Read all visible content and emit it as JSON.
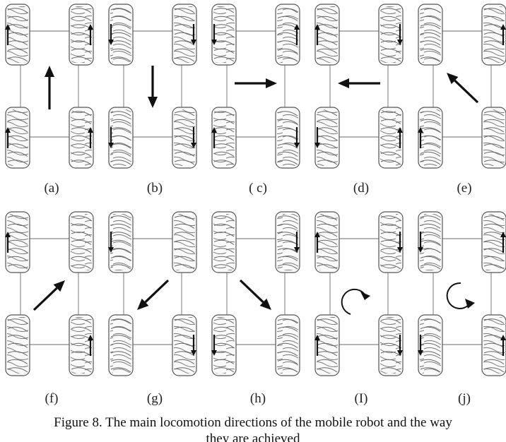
{
  "panels": [
    {
      "label": "(a)",
      "motion": "forward",
      "wheel_arrows": [
        "up",
        "up",
        "up",
        "up"
      ]
    },
    {
      "label": "(b)",
      "motion": "backward",
      "wheel_arrows": [
        "down",
        "down",
        "down",
        "down"
      ]
    },
    {
      "label": "( c)",
      "motion": "right",
      "wheel_arrows": [
        "down",
        "up",
        "up",
        "down"
      ]
    },
    {
      "label": "(d)",
      "motion": "left",
      "wheel_arrows": [
        "up",
        "down",
        "down",
        "up"
      ]
    },
    {
      "label": "(e)",
      "motion": "diagonal-forward-left",
      "wheel_arrows": [
        "none",
        "up",
        "up",
        "none"
      ]
    },
    {
      "label": "(f)",
      "motion": "diagonal-forward-right",
      "wheel_arrows": [
        "up",
        "none",
        "none",
        "up"
      ]
    },
    {
      "label": "(g)",
      "motion": "diagonal-backward-left",
      "wheel_arrows": [
        "down",
        "none",
        "none",
        "down"
      ]
    },
    {
      "label": "(h)",
      "motion": "diagonal-backward-right",
      "wheel_arrows": [
        "none",
        "down",
        "down",
        "none"
      ]
    },
    {
      "label": "(I)",
      "motion": "rotate-clockwise",
      "wheel_arrows": [
        "up",
        "down",
        "up",
        "down"
      ]
    },
    {
      "label": "(j)",
      "motion": "rotate-counterclockwise",
      "wheel_arrows": [
        "down",
        "up",
        "down",
        "up"
      ]
    }
  ],
  "caption": {
    "line1": "Figure 8.    The main  locomotion directions of the mobile robot and the way",
    "line2": "they are achieved"
  }
}
